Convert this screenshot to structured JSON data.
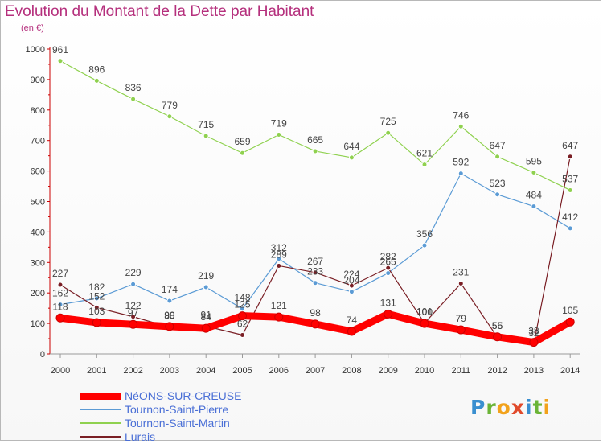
{
  "title": "Evolution du Montant de la Dette par Habitant",
  "subtitle": "(en €)",
  "logo": "Proxiti",
  "chart_data": {
    "type": "line",
    "categories": [
      "2000",
      "2001",
      "2002",
      "2003",
      "2004",
      "2005",
      "2006",
      "2007",
      "2008",
      "2009",
      "2010",
      "2011",
      "2012",
      "2013",
      "2014"
    ],
    "ylim": [
      0,
      1000
    ],
    "yticks": [
      0,
      100,
      200,
      300,
      400,
      500,
      600,
      700,
      800,
      900,
      1000
    ],
    "grid": false,
    "legend": "bottom-left",
    "series": [
      {
        "name": "Tournon-Saint-Martin",
        "color": "#8fd14f",
        "width": 1.2,
        "values": [
          961,
          896,
          836,
          779,
          715,
          659,
          719,
          665,
          644,
          725,
          621,
          746,
          647,
          595,
          537
        ]
      },
      {
        "name": "Tournon-Saint-Pierre",
        "color": "#5b9bd5",
        "width": 1.2,
        "values": [
          162,
          182,
          229,
          174,
          219,
          148,
          312,
          233,
          204,
          265,
          356,
          592,
          523,
          484,
          412
        ]
      },
      {
        "name": "Lurais",
        "color": "#7a1f25",
        "width": 1.2,
        "values": [
          227,
          152,
          122,
          88,
          91,
          62,
          289,
          267,
          224,
          282,
          101,
          231,
          55,
          32,
          647
        ]
      },
      {
        "name": "NéONS-SUR-CREUSE",
        "color": "#ff0000",
        "width": 9,
        "values": [
          118,
          103,
          97,
          90,
          84,
          125,
          121,
          98,
          74,
          131,
          100,
          79,
          56,
          38,
          105
        ]
      }
    ]
  }
}
